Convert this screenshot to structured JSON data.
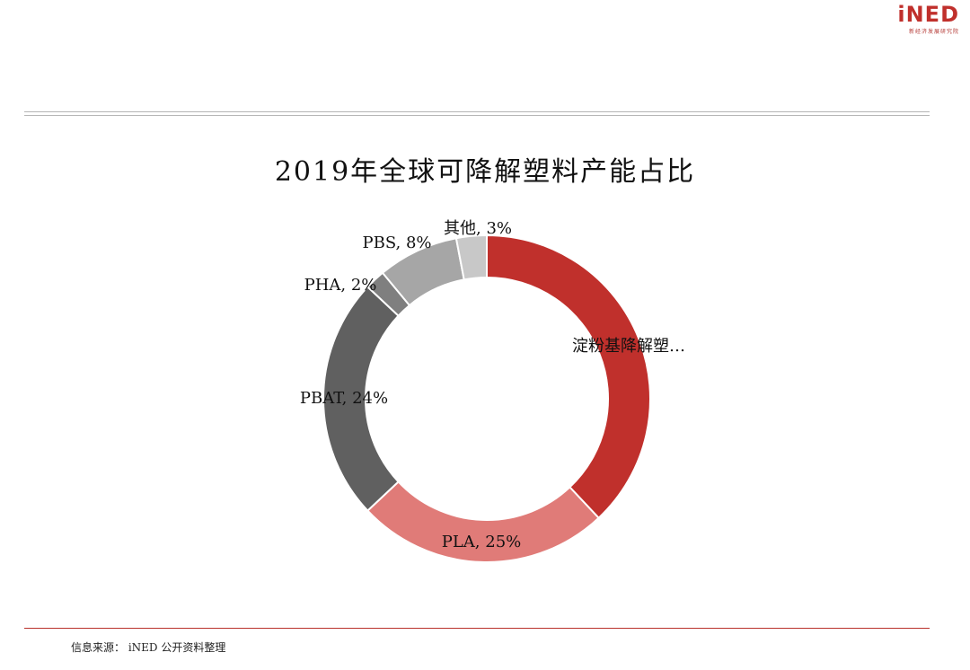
{
  "logo": {
    "text": "iNED",
    "subtitle": "新经济发展研究院"
  },
  "chart_data": {
    "type": "pie",
    "title": "2019年全球可降解塑料产能占比",
    "slices": [
      {
        "label": "淀粉基降解塑…",
        "value": 38,
        "color": "#c0302c"
      },
      {
        "label": "PLA, 25%",
        "value": 25,
        "color": "#e07b78"
      },
      {
        "label": "PBAT, 24%",
        "value": 24,
        "color": "#606060"
      },
      {
        "label": "PHA, 2%",
        "value": 2,
        "color": "#7f7f7f"
      },
      {
        "label": "PBS, 8%",
        "value": 8,
        "color": "#a6a6a6"
      },
      {
        "label": "其他, 3%",
        "value": 3,
        "color": "#c8c8c8"
      }
    ]
  },
  "footer": {
    "source": "信息来源： iNED 公开资料整理"
  }
}
